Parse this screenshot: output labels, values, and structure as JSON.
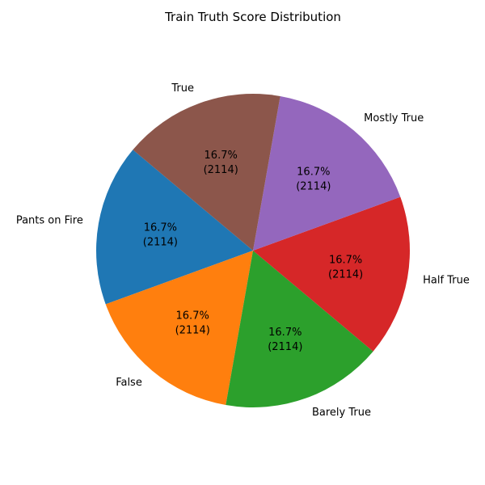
{
  "chart_data": {
    "type": "pie",
    "title": "Train Truth Score Distribution",
    "start_angle_deg": 140,
    "direction": "counterclockwise",
    "slices": [
      {
        "label": "Pants on Fire",
        "value": 2114,
        "pct_label": "16.7%",
        "count_label": "(2114)",
        "color": "#1f77b4"
      },
      {
        "label": "False",
        "value": 2114,
        "pct_label": "16.7%",
        "count_label": "(2114)",
        "color": "#ff7f0e"
      },
      {
        "label": "Barely True",
        "value": 2114,
        "pct_label": "16.7%",
        "count_label": "(2114)",
        "color": "#2ca02c"
      },
      {
        "label": "Half True",
        "value": 2114,
        "pct_label": "16.7%",
        "count_label": "(2114)",
        "color": "#d62728"
      },
      {
        "label": "Mostly True",
        "value": 2114,
        "pct_label": "16.7%",
        "count_label": "(2114)",
        "color": "#9467bd"
      },
      {
        "label": "True",
        "value": 2114,
        "pct_label": "16.7%",
        "count_label": "(2114)",
        "color": "#8c564b"
      }
    ]
  }
}
